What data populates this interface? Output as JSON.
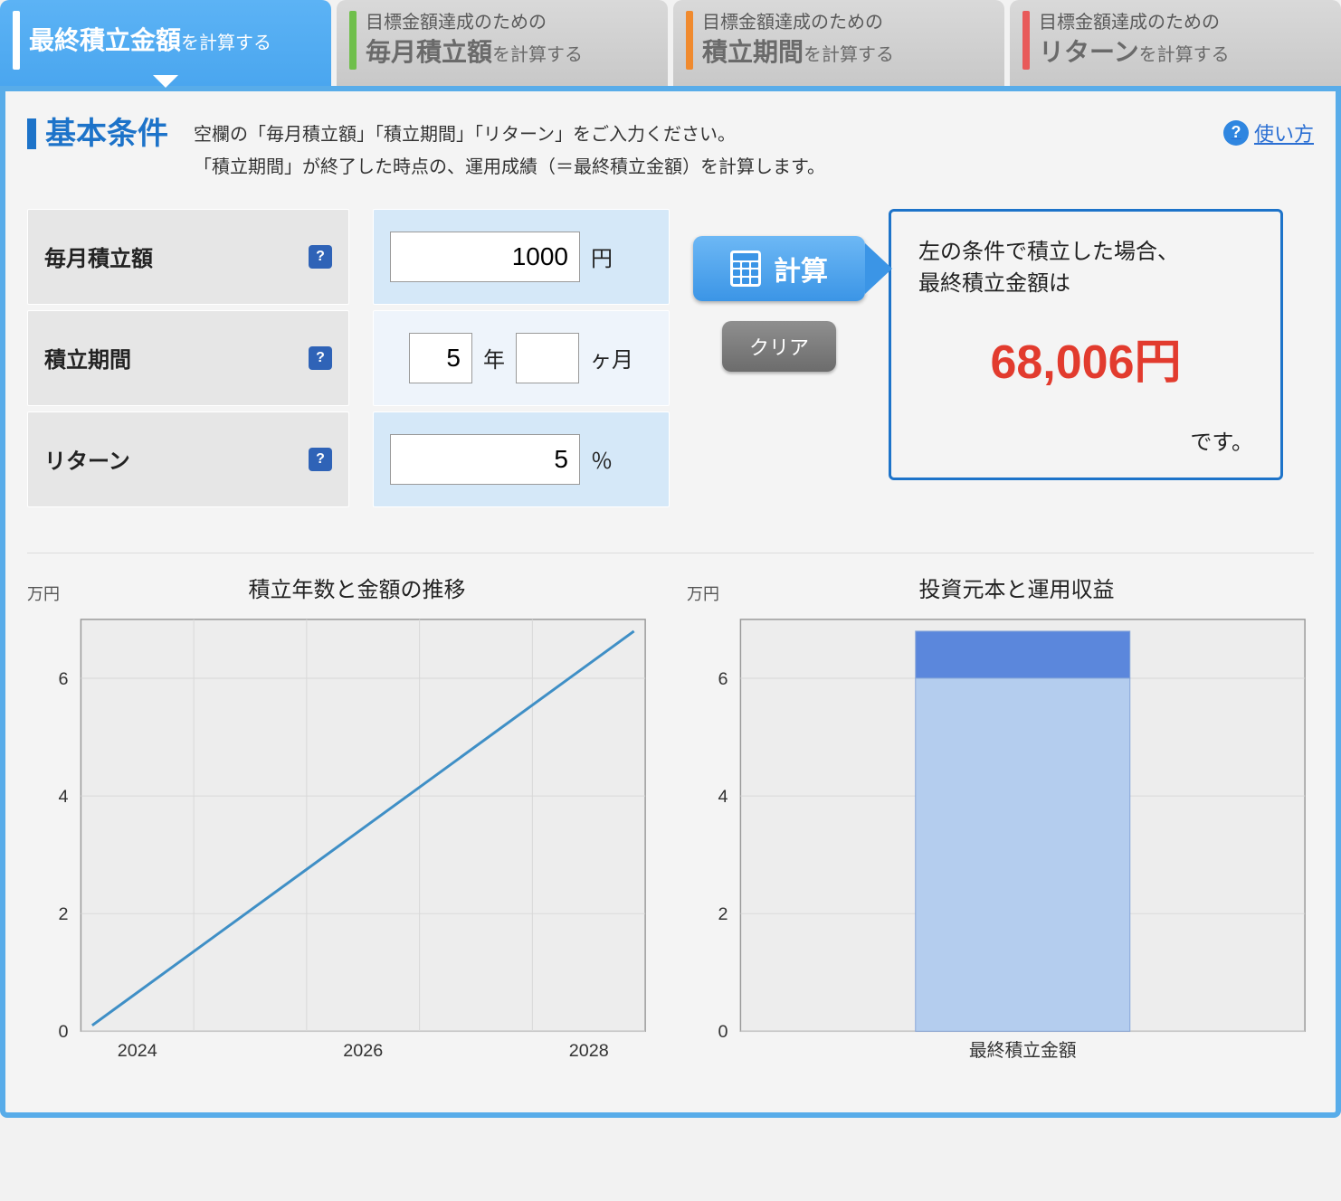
{
  "tabs": [
    {
      "stripe": "#ffffff",
      "line1": "",
      "strong": "最終積立金額",
      "suffix": "を計算する",
      "oneLine": true,
      "active": true
    },
    {
      "stripe": "#6fbf4b",
      "line1": "目標金額達成のための",
      "strong": "毎月積立額",
      "suffix": "を計算する"
    },
    {
      "stripe": "#f08a2e",
      "line1": "目標金額達成のための",
      "strong": "積立期間",
      "suffix": "を計算する"
    },
    {
      "stripe": "#e85a5a",
      "line1": "目標金額達成のための",
      "strong": "リターン",
      "suffix": "を計算する"
    }
  ],
  "section": {
    "title": "基本条件",
    "desc1": "空欄の「毎月積立額」「積立期間」「リターン」をご入力ください。",
    "desc2": "「積立期間」が終了した時点の、運用成績（＝最終積立金額）を計算します。",
    "helpLabel": "使い方"
  },
  "form": {
    "rows": [
      {
        "label": "毎月積立額",
        "value": "1000",
        "unit": "円",
        "light": true
      },
      {
        "label": "積立期間",
        "yearsValue": "5",
        "yearsUnit": "年",
        "monthsValue": "",
        "monthsUnit": "ヶ月",
        "light": false
      },
      {
        "label": "リターン",
        "value": "5",
        "unit": "％",
        "light": true
      }
    ],
    "calcLabel": "計算",
    "clearLabel": "クリア"
  },
  "result": {
    "line1": "左の条件で積立した場合、",
    "line2": "最終積立金額は",
    "amount": "68,006円",
    "suffix": "です。"
  },
  "chart1": {
    "type": "line",
    "ylabel": "万円",
    "title": "積立年数と金額の推移",
    "xticks": [
      "2024",
      "2026",
      "2028"
    ],
    "xtick_pos": [
      0.1,
      0.5,
      0.9
    ],
    "yticks": [
      0,
      2,
      4,
      6
    ],
    "ymax": 7,
    "line_color": "#3f8fc6",
    "line_width": 3,
    "grid_color": "#d8d8d8",
    "border_color": "#9a9a9a",
    "bg_color": "#ededed",
    "points_x": [
      0.02,
      0.98
    ],
    "points_y": [
      0.1,
      6.8
    ]
  },
  "chart2": {
    "type": "stacked-bar",
    "ylabel": "万円",
    "title": "投資元本と運用収益",
    "xlabel": "最終積立金額",
    "yticks": [
      0,
      2,
      4,
      6
    ],
    "ymax": 7,
    "grid_color": "#d8d8d8",
    "border_color": "#9a9a9a",
    "bg_color": "#ededed",
    "bar": {
      "principal": 6.0,
      "profit": 0.8,
      "principal_color": "#b4cdee",
      "profit_color": "#5b87dc",
      "x_center": 0.5,
      "width": 0.38,
      "outline": "#88a7d8"
    }
  },
  "colors": {
    "accent": "#1d73c9",
    "result": "#e23b2e"
  }
}
